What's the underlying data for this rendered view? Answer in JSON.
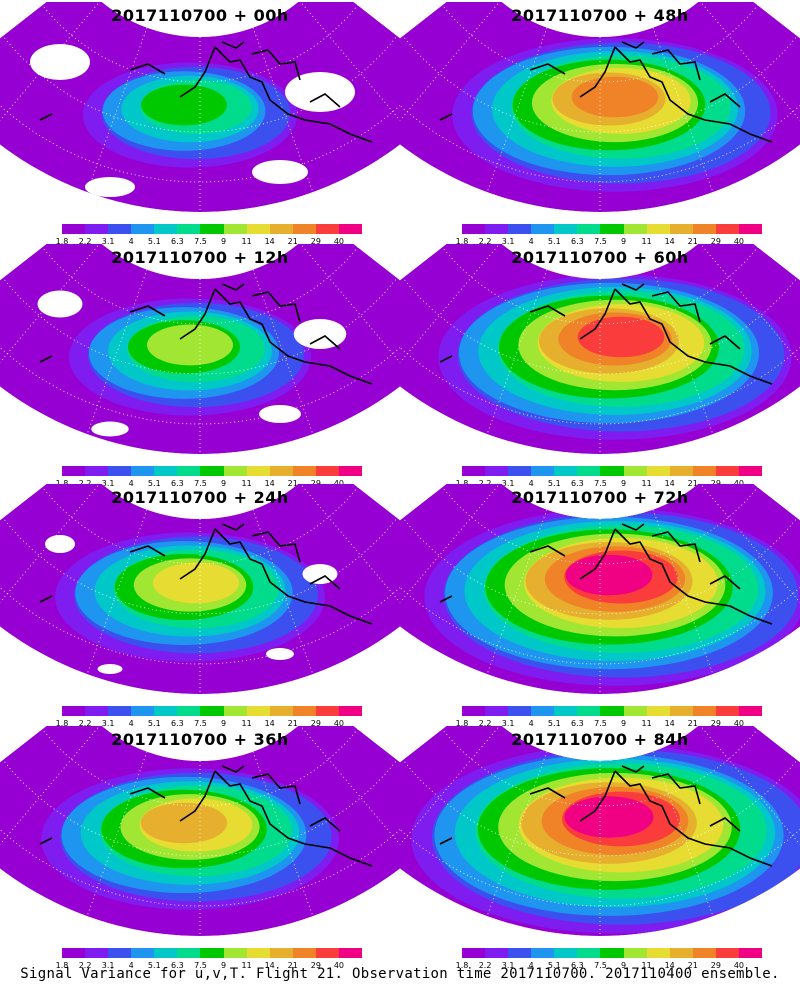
{
  "panels": [
    {
      "title": "2017110700 + 00h",
      "intensity": 0
    },
    {
      "title": "2017110700 + 48h",
      "intensity": 4
    },
    {
      "title": "2017110700 + 12h",
      "intensity": 1
    },
    {
      "title": "2017110700 + 60h",
      "intensity": 5
    },
    {
      "title": "2017110700 + 24h",
      "intensity": 2
    },
    {
      "title": "2017110700 + 72h",
      "intensity": 6
    },
    {
      "title": "2017110700 + 36h",
      "intensity": 3
    },
    {
      "title": "2017110700 + 84h",
      "intensity": 7
    }
  ],
  "colorbar": {
    "colors": [
      "#9600d2",
      "#7f1df0",
      "#3c50f0",
      "#1e96f0",
      "#00c8c8",
      "#00dc8c",
      "#00c800",
      "#a0e632",
      "#e6dc32",
      "#e6af2d",
      "#f08228",
      "#fa3c3c",
      "#f00082"
    ],
    "labels": [
      "1.8",
      "2.2",
      "3.1",
      "4",
      "5.1",
      "6.3",
      "7.5",
      "9",
      "11",
      "14",
      "21",
      "29",
      "40"
    ]
  },
  "footer": "Signal Variance for u,v,T. Flight 21. Observation time 2017110700. 2017110400 ensemble."
}
